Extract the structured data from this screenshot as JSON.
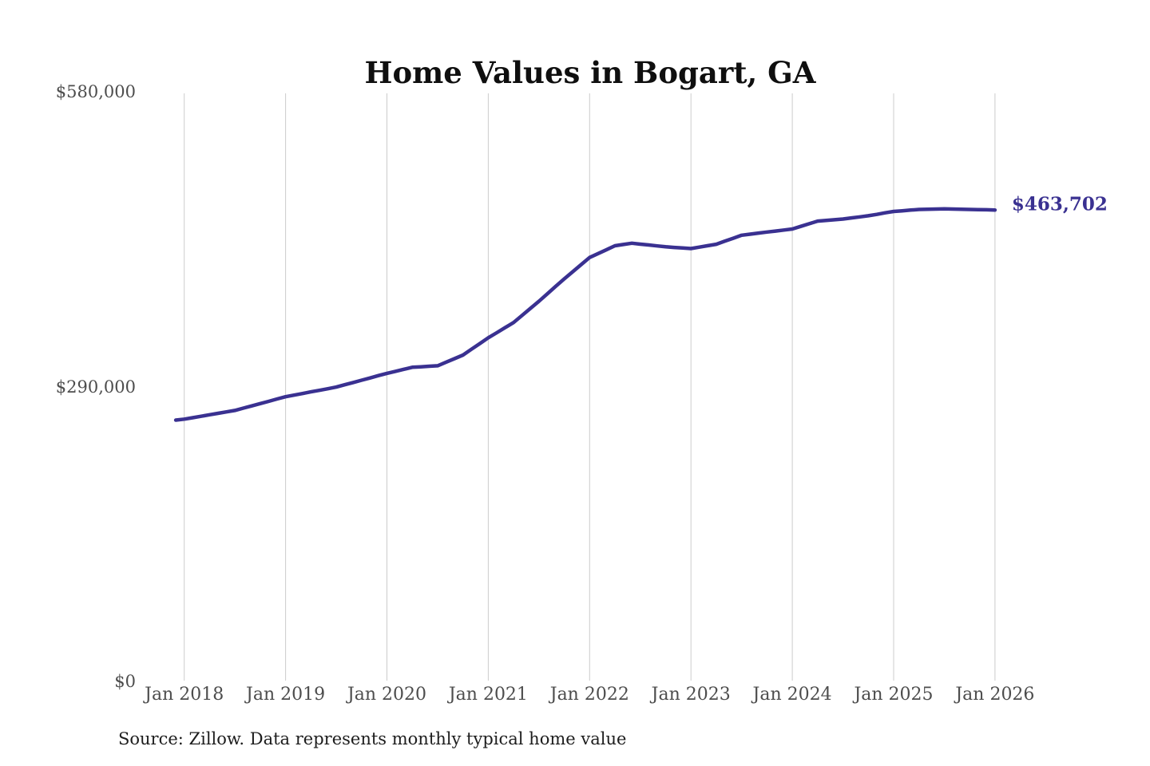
{
  "header": {
    "title": "Home Values in Bogart, GA"
  },
  "footer": {
    "source": "Source: Zillow. Data represents monthly typical home value"
  },
  "chart_data": {
    "type": "line",
    "title": "Home Values in Bogart, GA",
    "series_name": "Monthly typical home value",
    "line_color": "#3a3191",
    "grid_color": "#cccccc",
    "grid": "vertical-only",
    "legend": "none",
    "ylim": [
      0,
      580000
    ],
    "y_tick_labels": [
      "$580,000",
      "$290,000",
      "$0"
    ],
    "y_tick_values": [
      580000,
      290000,
      0
    ],
    "x_tick_labels": [
      "Jan 2018",
      "Jan 2019",
      "Jan 2020",
      "Jan 2021",
      "Jan 2022",
      "Jan 2023",
      "Jan 2024",
      "Jan 2025",
      "Jan 2026"
    ],
    "x_start_offset_months": -1,
    "end_label": "$463,702",
    "end_value": 463702,
    "x": [
      "2017-12",
      "2018-01",
      "2018-02",
      "2018-03",
      "2018-04",
      "2018-05",
      "2018-06",
      "2018-07",
      "2018-08",
      "2018-09",
      "2018-10",
      "2018-11",
      "2018-12",
      "2019-01",
      "2019-02",
      "2019-03",
      "2019-04",
      "2019-05",
      "2019-06",
      "2019-07",
      "2019-08",
      "2019-09",
      "2019-10",
      "2019-11",
      "2019-12",
      "2020-01",
      "2020-02",
      "2020-03",
      "2020-04",
      "2020-05",
      "2020-06",
      "2020-07",
      "2020-08",
      "2020-09",
      "2020-10",
      "2020-11",
      "2020-12",
      "2021-01",
      "2021-02",
      "2021-03",
      "2021-04",
      "2021-05",
      "2021-06",
      "2021-07",
      "2021-08",
      "2021-09",
      "2021-10",
      "2021-11",
      "2021-12",
      "2022-01",
      "2022-02",
      "2022-03",
      "2022-04",
      "2022-05",
      "2022-06",
      "2022-07",
      "2022-08",
      "2022-09",
      "2022-10",
      "2022-11",
      "2022-12",
      "2023-01",
      "2023-02",
      "2023-03",
      "2023-04",
      "2023-05",
      "2023-06",
      "2023-07",
      "2023-08",
      "2023-09",
      "2023-10",
      "2023-11",
      "2023-12",
      "2024-01",
      "2024-02",
      "2024-03",
      "2024-04",
      "2024-05",
      "2024-06",
      "2024-07",
      "2024-08",
      "2024-09",
      "2024-10",
      "2024-11",
      "2024-12",
      "2025-01",
      "2025-02",
      "2025-03",
      "2025-04",
      "2025-05",
      "2025-06",
      "2025-07",
      "2025-08",
      "2025-09",
      "2025-10",
      "2025-11",
      "2025-12",
      "2026-01"
    ],
    "values": [
      257000,
      258000,
      259400,
      260800,
      262300,
      263700,
      265100,
      266500,
      268800,
      271000,
      273300,
      275500,
      277800,
      280000,
      281600,
      283200,
      284800,
      286300,
      287900,
      289500,
      291800,
      294000,
      296300,
      298500,
      300800,
      303000,
      305000,
      307000,
      309000,
      309500,
      310000,
      310500,
      314000,
      317500,
      321000,
      326700,
      332300,
      338000,
      343000,
      348000,
      353000,
      360000,
      367000,
      374000,
      381300,
      388700,
      396000,
      403000,
      410000,
      417000,
      420800,
      424700,
      428500,
      429800,
      431000,
      430100,
      429300,
      428400,
      427500,
      426900,
      426400,
      425800,
      427200,
      428600,
      430000,
      433000,
      435900,
      438900,
      439900,
      441000,
      442000,
      443000,
      444000,
      445000,
      447600,
      450200,
      452800,
      453500,
      454100,
      454800,
      455900,
      456900,
      458000,
      459400,
      460900,
      462300,
      462900,
      463600,
      464200,
      464400,
      464600,
      464800,
      464600,
      464400,
      464200,
      464000,
      463900,
      463702
    ]
  }
}
